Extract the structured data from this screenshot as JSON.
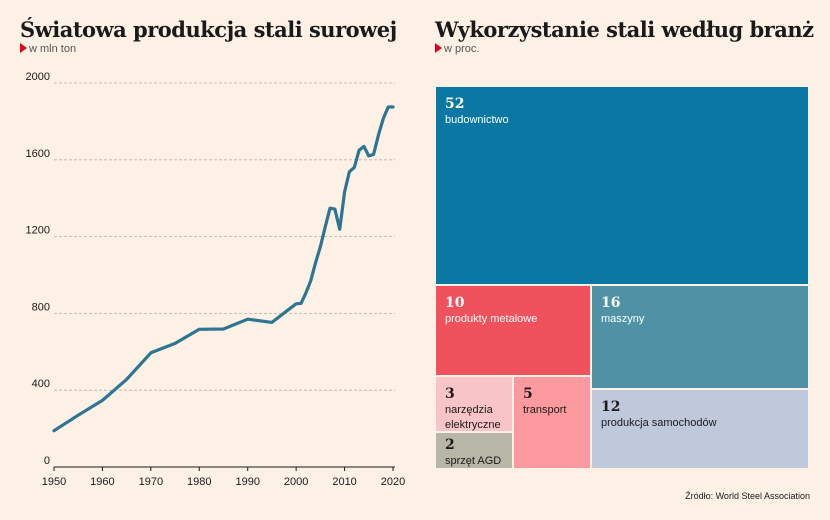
{
  "left_panel": {
    "title": "Światowa produkcja stali surowej",
    "subtitle": "w mln ton"
  },
  "right_panel": {
    "title": "Wykorzystanie stali według branż",
    "subtitle": "w proc."
  },
  "source": "Źródło: World Steel Association",
  "colors": {
    "line": "#2e7493",
    "background": "#fdf0e4",
    "budownictwo": "#0b77a3",
    "produkty_metalowe": "#f0525d",
    "maszyny": "#4f92a5",
    "produkcja_samochodow": "#c0c8dc",
    "narzedzia_elektryczne": "#f8c4c8",
    "transport": "#fc9a9f",
    "sprzet_agd": "#b7b6a7"
  },
  "chart_data": [
    {
      "type": "line",
      "title": "Światowa produkcja stali surowej",
      "subtitle": "w mln ton",
      "xlabel": "",
      "ylabel": "",
      "xlim": [
        1950,
        2020
      ],
      "ylim": [
        0,
        2000
      ],
      "x_ticks": [
        "1950",
        "1960",
        "1970",
        "1980",
        "1990",
        "2000",
        "2010",
        "2020"
      ],
      "y_ticks": [
        "0",
        "400",
        "800",
        "1200",
        "1600",
        "2000"
      ],
      "grid": true,
      "series": [
        {
          "x": [
            1950,
            1955,
            1960,
            1965,
            1970,
            1975,
            1980,
            1985,
            1990,
            1995,
            2000,
            2001,
            2002,
            2003,
            2004,
            2005,
            2006,
            2007,
            2008,
            2009,
            2010,
            2011,
            2012,
            2013,
            2014,
            2015,
            2016,
            2017,
            2018,
            2019,
            2020
          ],
          "values": [
            189,
            270,
            347,
            456,
            595,
            644,
            717,
            719,
            770,
            753,
            850,
            852,
            905,
            970,
            1063,
            1148,
            1250,
            1348,
            1343,
            1238,
            1433,
            1538,
            1560,
            1650,
            1670,
            1620,
            1628,
            1730,
            1815,
            1875,
            1875
          ]
        }
      ]
    },
    {
      "type": "treemap",
      "title": "Wykorzystanie stali według branż",
      "subtitle": "w proc.",
      "items": [
        {
          "label": "budownictwo",
          "value": 52
        },
        {
          "label": "produkty metalowe",
          "value": 10
        },
        {
          "label": "maszyny",
          "value": 16
        },
        {
          "label": "produkcja samochodów",
          "value": 12
        },
        {
          "label": "narzędzia elektryczne",
          "value": 3
        },
        {
          "label": "transport",
          "value": 5
        },
        {
          "label": "sprzęt AGD",
          "value": 2
        }
      ]
    }
  ]
}
